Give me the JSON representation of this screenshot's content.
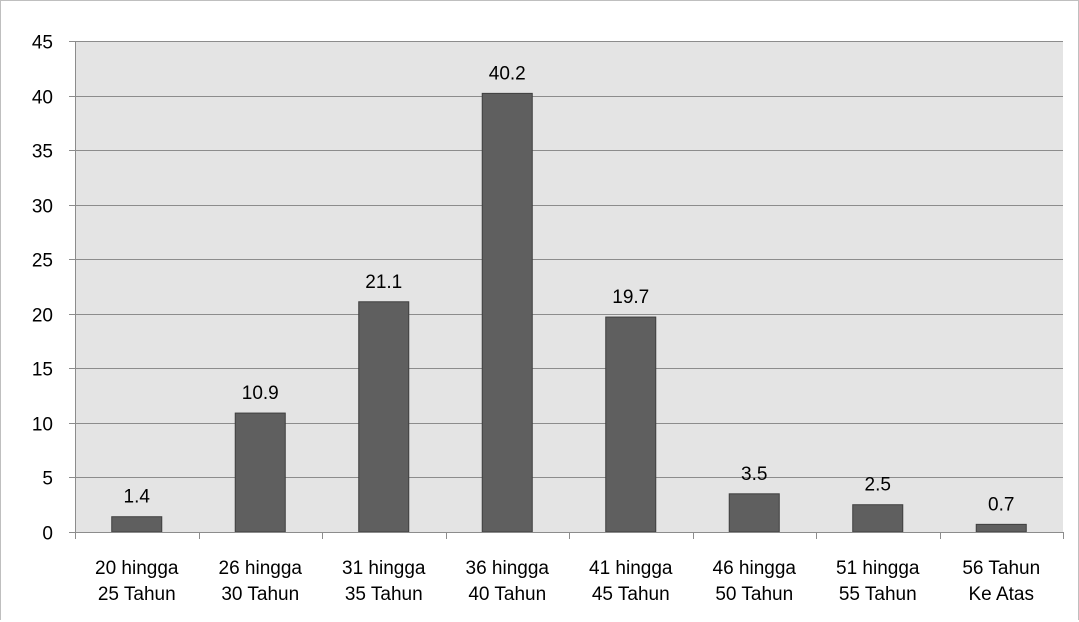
{
  "chart_data": {
    "type": "bar",
    "title": "",
    "xlabel": "",
    "ylabel": "",
    "ylim": [
      0,
      45
    ],
    "yticks": [
      0,
      5,
      10,
      15,
      20,
      25,
      30,
      35,
      40,
      45
    ],
    "categories": [
      [
        "20 hingga",
        "25 Tahun"
      ],
      [
        "26 hingga",
        "30 Tahun"
      ],
      [
        "31 hingga",
        "35 Tahun"
      ],
      [
        "36 hingga",
        "40 Tahun"
      ],
      [
        "41 hingga",
        "45 Tahun"
      ],
      [
        "46 hingga",
        "50 Tahun"
      ],
      [
        "51 hingga",
        "55 Tahun"
      ],
      [
        "56 Tahun",
        "Ke Atas"
      ]
    ],
    "values": [
      1.4,
      10.9,
      21.1,
      40.2,
      19.7,
      3.5,
      2.5,
      0.7
    ],
    "data_labels": [
      "1.4",
      "10.9",
      "21.1",
      "40.2",
      "19.7",
      "3.5",
      "2.5",
      "0.7"
    ],
    "grid": true,
    "legend": "none",
    "colors": {
      "bar": "#5f5f5f",
      "bar_edge": "#3f3f3f",
      "plot_background": "#e4e4e4",
      "gridline": "#8c8c8c",
      "axis": "#8c8c8c"
    }
  }
}
